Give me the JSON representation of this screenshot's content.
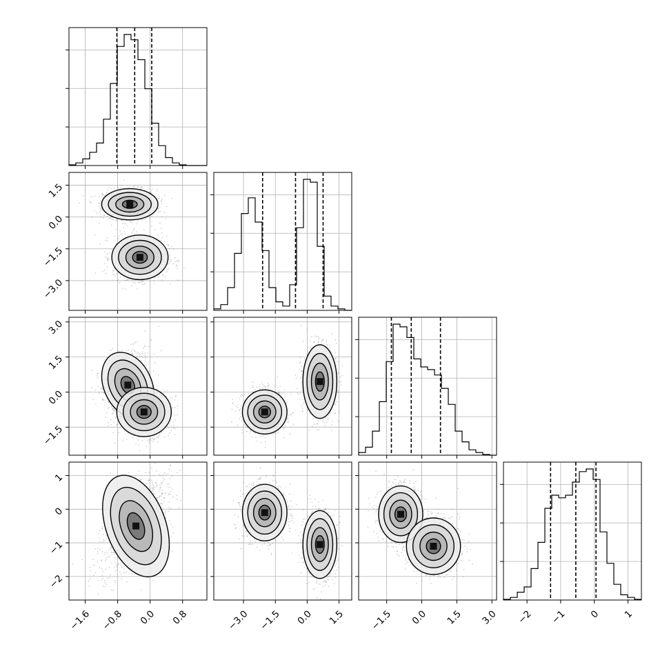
{
  "chart_data": {
    "type": "corner",
    "description_free": true,
    "grid": true,
    "colors": {
      "line": "#000000",
      "grid": "#b0b0b0",
      "points": "#7f7f7f"
    },
    "parameters": [
      {
        "index": 0,
        "range": [
          -2.0,
          1.4
        ],
        "ticks": [
          -1.6,
          -0.8,
          0.0,
          0.8
        ],
        "tick_labels": [
          "−1.6",
          "−0.8",
          "0.0",
          "0.8"
        ],
        "quantiles": [
          -0.82,
          -0.38,
          0.04
        ]
      },
      {
        "index": 1,
        "range": [
          -4.4,
          2.1
        ],
        "ticks": [
          -3.0,
          -1.5,
          0.0,
          1.5
        ],
        "tick_labels": [
          "−3.0",
          "−1.5",
          "0.0",
          "1.5"
        ],
        "quantiles": [
          -2.1,
          -0.55,
          0.75
        ]
      },
      {
        "index": 2,
        "range": [
          -2.7,
          3.2
        ],
        "ticks": [
          -1.5,
          0.0,
          1.5,
          3.0
        ],
        "tick_labels": [
          "−1.5",
          "0.0",
          "1.5",
          "3.0"
        ],
        "quantiles": [
          -1.3,
          -0.45,
          0.8
        ]
      },
      {
        "index": 3,
        "range": [
          -2.7,
          1.4
        ],
        "ticks": [
          -2,
          -1,
          0,
          1
        ],
        "tick_labels": [
          "−2",
          "−1",
          "0",
          "1"
        ],
        "quantiles": [
          -1.3,
          -0.55,
          0.05
        ]
      }
    ],
    "histograms": [
      {
        "param": 0,
        "edges_start": -2.0,
        "bin_width": 0.17,
        "counts": [
          0.5,
          2,
          5,
          10,
          17,
          35,
          62,
          90,
          99,
          95,
          80,
          58,
          32,
          15,
          6,
          2,
          0.5,
          0,
          0,
          0
        ]
      },
      {
        "param": 1,
        "edges_start": -4.4,
        "bin_width": 0.325,
        "counts": [
          1,
          4,
          16,
          40,
          68,
          79,
          62,
          42,
          16,
          6,
          3,
          18,
          58,
          92,
          90,
          45,
          10,
          3,
          1,
          0
        ]
      },
      {
        "param": 2,
        "edges_start": -2.7,
        "bin_width": 0.295,
        "counts": [
          2,
          6,
          18,
          40,
          70,
          98,
          96,
          88,
          72,
          66,
          64,
          60,
          50,
          38,
          18,
          10,
          4,
          2,
          0.5,
          0
        ]
      },
      {
        "param": 3,
        "edges_start": -2.7,
        "bin_width": 0.205,
        "counts": [
          0.5,
          2,
          6,
          10,
          24,
          44,
          70,
          80,
          78,
          80,
          90,
          98,
          100,
          92,
          52,
          28,
          12,
          4,
          2,
          0.5
        ]
      }
    ],
    "scatter_panels": [
      {
        "x_param": 0,
        "y_param": 1,
        "modes": [
          {
            "x": -0.5,
            "y": 0.6,
            "sx": 0.33,
            "sy": 0.35
          },
          {
            "x": -0.25,
            "y": -1.9,
            "sx": 0.33,
            "sy": 0.5
          }
        ]
      },
      {
        "x_param": 0,
        "y_param": 2,
        "modes": [
          {
            "x": -0.55,
            "y": 0.3,
            "sx": 0.28,
            "sy": 0.7,
            "curve": "banana"
          },
          {
            "x": -0.15,
            "y": -0.85,
            "sx": 0.32,
            "sy": 0.5
          }
        ]
      },
      {
        "x_param": 1,
        "y_param": 2,
        "modes": [
          {
            "x": -2.0,
            "y": -0.85,
            "sx": 0.5,
            "sy": 0.45
          },
          {
            "x": 0.6,
            "y": 0.45,
            "sx": 0.38,
            "sy": 0.75
          }
        ]
      },
      {
        "x_param": 0,
        "y_param": 3,
        "modes": [
          {
            "x": -0.35,
            "y": -0.5,
            "sx": 0.35,
            "sy": 0.75,
            "curve": "tilted"
          }
        ]
      },
      {
        "x_param": 1,
        "y_param": 3,
        "modes": [
          {
            "x": -2.0,
            "y": -0.1,
            "sx": 0.5,
            "sy": 0.4
          },
          {
            "x": 0.6,
            "y": -1.05,
            "sx": 0.38,
            "sy": 0.48
          }
        ]
      },
      {
        "x_param": 2,
        "y_param": 3,
        "modes": [
          {
            "x": -0.9,
            "y": -0.15,
            "sx": 0.45,
            "sy": 0.4
          },
          {
            "x": 0.5,
            "y": -1.1,
            "sx": 0.55,
            "sy": 0.4
          }
        ]
      }
    ]
  }
}
